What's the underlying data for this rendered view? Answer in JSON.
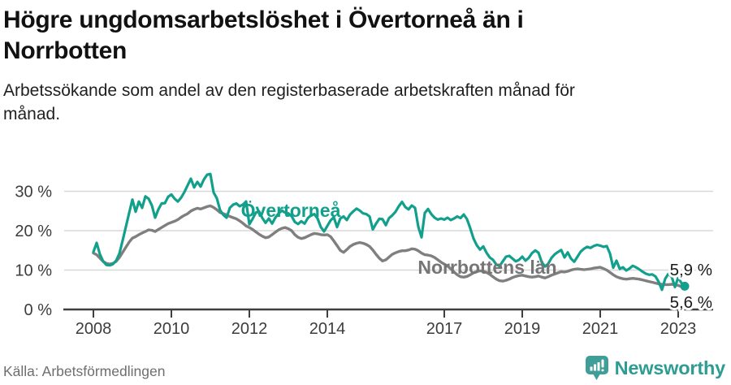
{
  "header": {
    "title": "Högre ungdomsarbetslöshet i Övertorneå än i Norrbotten",
    "subtitle": "Arbetssökande som andel av den registerbaserade arbetskraften månad för månad."
  },
  "footer": {
    "source": "Källa: Arbetsförmedlingen",
    "brand": "Newsworthy",
    "brand_icon": "newsworthy-speech-bubble-bar-chart-icon"
  },
  "colors": {
    "overtornea": "#12a08c",
    "norrbotten": "#7f7f7f",
    "norrbotten_label": "#757575",
    "grid": "#d8d8d8",
    "axis": "#3f3f3f",
    "tick_text": "#3c3c3c",
    "end_label_text": "#1a1a1a",
    "brand_teal": "#2f9c94"
  },
  "chart_data": {
    "type": "line",
    "x_unit": "month",
    "x_start": "2008-01",
    "x_end": "2023-03",
    "x_ticks": [
      2008,
      2010,
      2012,
      2014,
      2017,
      2019,
      2021,
      2023
    ],
    "y_ticks": [
      {
        "value": 0,
        "label": "0 %"
      },
      {
        "value": 10,
        "label": "10 %"
      },
      {
        "value": 20,
        "label": "20 %"
      },
      {
        "value": 30,
        "label": "30 %"
      }
    ],
    "ylim": [
      0,
      35
    ],
    "grid": true,
    "legend_position": "inline-labels",
    "series": [
      {
        "name": "Norrbottens län",
        "end_label": "5,6 %",
        "end_value": 5.6,
        "end_dot": false,
        "values": [
          14.3,
          13.9,
          13.0,
          12.2,
          11.7,
          11.5,
          11.7,
          12.2,
          13.2,
          14.5,
          15.8,
          17.1,
          18.1,
          18.5,
          19.0,
          19.4,
          19.8,
          20.2,
          20.1,
          19.8,
          20.3,
          20.8,
          21.3,
          21.8,
          22.1,
          22.4,
          22.8,
          23.4,
          23.9,
          24.3,
          25.0,
          25.4,
          25.7,
          25.5,
          25.8,
          26.1,
          26.3,
          25.9,
          25.3,
          24.6,
          24.3,
          24.0,
          23.6,
          23.3,
          23.0,
          22.5,
          21.9,
          21.2,
          20.8,
          20.3,
          19.7,
          19.1,
          18.6,
          18.2,
          18.4,
          19.0,
          19.6,
          20.2,
          20.6,
          20.8,
          20.5,
          20.0,
          19.0,
          18.3,
          18.0,
          18.2,
          18.6,
          19.0,
          19.3,
          19.2,
          19.0,
          18.9,
          19.0,
          18.5,
          17.4,
          16.2,
          15.0,
          14.5,
          15.2,
          16.0,
          16.5,
          16.8,
          17.0,
          16.8,
          16.5,
          16.0,
          15.1,
          14.0,
          13.0,
          12.3,
          12.6,
          13.3,
          14.0,
          14.4,
          14.7,
          14.9,
          14.9,
          15.1,
          15.4,
          15.3,
          14.9,
          14.3,
          13.9,
          13.8,
          13.6,
          13.2,
          12.6,
          12.0,
          11.5,
          11.0,
          10.3,
          9.5,
          8.8,
          8.3,
          8.2,
          8.4,
          8.8,
          9.3,
          9.6,
          9.8,
          9.7,
          9.4,
          8.9,
          8.3,
          7.7,
          7.3,
          7.2,
          7.4,
          7.7,
          8.1,
          8.4,
          8.6,
          8.7,
          8.5,
          8.3,
          8.2,
          8.3,
          8.5,
          8.2,
          8.0,
          8.3,
          8.7,
          9.0,
          9.3,
          9.6,
          9.5,
          9.7,
          10.0,
          10.2,
          10.3,
          10.2,
          10.1,
          10.2,
          10.3,
          10.5,
          10.6,
          10.7,
          10.4,
          10.0,
          9.4,
          8.8,
          8.3,
          8.0,
          7.8,
          7.7,
          7.8,
          7.9,
          7.8,
          7.7,
          7.5,
          7.3,
          7.1,
          6.9,
          6.7,
          6.5,
          6.4,
          6.3,
          6.3,
          6.4,
          6.3,
          6.1,
          5.8,
          5.6
        ]
      },
      {
        "name": "Övertorneå",
        "end_label": "5,9 %",
        "end_value": 5.9,
        "end_dot": true,
        "values": [
          14.6,
          16.9,
          14.0,
          12.2,
          11.3,
          11.2,
          11.5,
          12.4,
          14.2,
          17.5,
          21.0,
          24.5,
          27.9,
          24.8,
          27.4,
          25.8,
          28.7,
          28.1,
          26.4,
          23.3,
          25.4,
          26.9,
          27.0,
          28.6,
          29.2,
          28.1,
          27.4,
          28.4,
          29.8,
          31.5,
          33.2,
          31.0,
          32.4,
          31.2,
          33.0,
          34.2,
          34.4,
          29.7,
          28.2,
          25.2,
          24.0,
          23.3,
          25.8,
          26.6,
          26.9,
          26.2,
          26.6,
          27.4,
          21.6,
          23.0,
          24.6,
          24.9,
          23.2,
          22.0,
          23.1,
          21.8,
          23.3,
          24.4,
          25.1,
          24.6,
          24.4,
          23.7,
          22.2,
          21.7,
          22.4,
          21.8,
          23.2,
          23.9,
          24.2,
          23.1,
          20.9,
          19.8,
          21.2,
          22.6,
          23.4,
          20.9,
          23.1,
          23.6,
          22.7,
          24.1,
          24.9,
          25.6,
          25.1,
          24.4,
          24.2,
          23.6,
          20.3,
          21.8,
          23.0,
          22.9,
          21.4,
          23.2,
          23.9,
          24.8,
          26.2,
          27.3,
          26.0,
          25.4,
          26.4,
          25.8,
          21.0,
          18.3,
          24.5,
          25.5,
          24.2,
          23.3,
          22.8,
          23.1,
          22.8,
          23.3,
          22.7,
          23.1,
          23.6,
          23.2,
          24.1,
          22.9,
          20.6,
          18.0,
          16.3,
          15.2,
          16.0,
          14.4,
          13.2,
          12.6,
          11.4,
          11.0,
          12.2,
          13.4,
          13.6,
          12.9,
          12.2,
          12.6,
          13.4,
          12.4,
          13.1,
          14.3,
          15.0,
          14.4,
          12.0,
          10.9,
          11.6,
          13.1,
          14.0,
          14.6,
          15.1,
          13.2,
          14.5,
          12.9,
          12.1,
          13.4,
          14.7,
          15.4,
          15.9,
          15.6,
          16.1,
          16.4,
          16.2,
          15.9,
          16.1,
          14.2,
          10.6,
          12.4,
          10.3,
          10.7,
          9.9,
          10.4,
          11.1,
          10.7,
          10.2,
          9.6,
          9.1,
          8.8,
          8.9,
          8.4,
          7.0,
          5.0,
          7.8,
          9.1,
          8.3,
          5.7,
          8.1,
          6.7,
          5.9
        ]
      }
    ]
  }
}
